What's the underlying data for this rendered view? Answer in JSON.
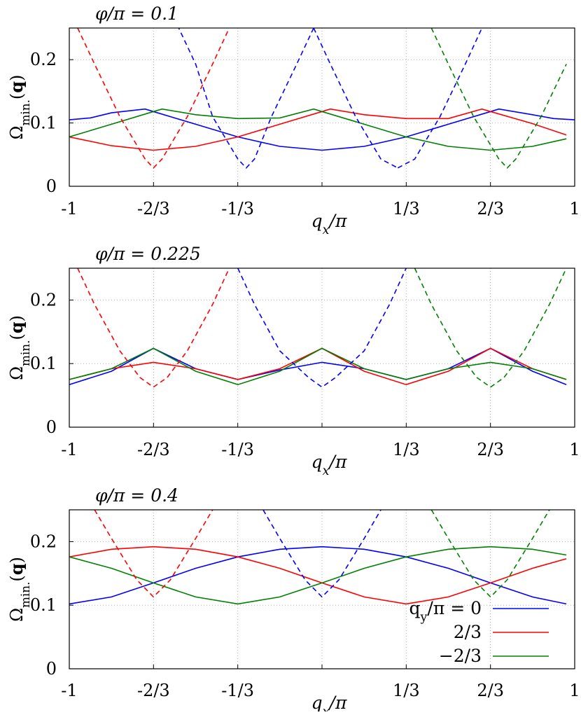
{
  "chart_data": [
    {
      "type": "line",
      "title": "φ/π = 0.1",
      "xlabel": "q_x/π",
      "ylabel": "Ω_min.(q)",
      "xlim": [
        -1,
        1
      ],
      "ylim": [
        0,
        0.25
      ],
      "grid": true,
      "xticks": [
        -1,
        -0.6667,
        -0.3333,
        0,
        0.3333,
        0.6667,
        1
      ],
      "xtick_labels": [
        "-1",
        "-2/3",
        "-1/3",
        "",
        "1/3",
        "2/3",
        "1"
      ],
      "yticks": [
        0,
        0.1,
        0.2
      ],
      "ytick_labels": [
        "0",
        "0.1",
        "0.2"
      ],
      "series": [
        {
          "style": "solid",
          "color": "#0000ff",
          "x": [
            -1,
            -0.917,
            -0.833,
            -0.7,
            -0.667,
            -0.5,
            -0.333,
            -0.167,
            0,
            0.167,
            0.333,
            0.5,
            0.667,
            0.7,
            0.833,
            0.917,
            1
          ],
          "y": [
            0.105,
            0.108,
            0.116,
            0.122,
            0.118,
            0.098,
            0.078,
            0.063,
            0.057,
            0.063,
            0.078,
            0.098,
            0.118,
            0.122,
            0.113,
            0.107,
            0.105
          ]
        },
        {
          "style": "solid",
          "color": "#ff0000",
          "x": [
            -1,
            -0.833,
            -0.667,
            -0.5,
            -0.333,
            -0.167,
            0,
            0.033,
            0.167,
            0.333,
            0.5,
            0.633,
            0.667,
            0.833,
            0.967
          ],
          "y": [
            0.078,
            0.064,
            0.057,
            0.063,
            0.078,
            0.098,
            0.118,
            0.122,
            0.113,
            0.107,
            0.107,
            0.122,
            0.118,
            0.099,
            0.081
          ]
        },
        {
          "style": "solid",
          "color": "#008000",
          "x": [
            -1,
            -0.833,
            -0.667,
            -0.633,
            -0.5,
            -0.333,
            -0.167,
            -0.033,
            0,
            0.167,
            0.333,
            0.5,
            0.667,
            0.833,
            0.967
          ],
          "y": [
            0.078,
            0.098,
            0.118,
            0.122,
            0.113,
            0.107,
            0.108,
            0.122,
            0.118,
            0.098,
            0.078,
            0.063,
            0.057,
            0.063,
            0.075
          ]
        },
        {
          "style": "dashed",
          "color": "#ff0000",
          "x": [
            -0.967,
            -0.9,
            -0.8,
            -0.7,
            -0.667,
            -0.633,
            -0.533,
            -0.433,
            -0.367
          ],
          "y": [
            0.25,
            0.193,
            0.11,
            0.043,
            0.029,
            0.043,
            0.11,
            0.193,
            0.25
          ]
        },
        {
          "style": "dashed",
          "color": "#0000ff",
          "x": [
            -0.033,
            0.033,
            0.133,
            0.233,
            0.3
          ],
          "y": [
            0.25,
            0.193,
            0.11,
            0.043,
            0.029
          ]
        },
        {
          "style": "dashed",
          "color": "#0000ff",
          "x": [
            0.3,
            0.367,
            0.467,
            0.567,
            0.633
          ],
          "y": [
            0.029,
            0.043,
            0.11,
            0.193,
            0.25
          ]
        },
        {
          "style": "dashed",
          "color": "#0000ff",
          "x": [
            -0.033,
            -0.1,
            -0.2,
            -0.267,
            -0.3,
            -0.333,
            -0.433,
            -0.5,
            -0.567
          ],
          "y": [
            0.25,
            0.193,
            0.11,
            0.043,
            0.029,
            0.043,
            0.11,
            0.193,
            0.25
          ]
        },
        {
          "style": "dashed",
          "color": "#008000",
          "x": [
            0.433,
            0.5,
            0.6,
            0.7,
            0.733,
            0.767,
            0.867,
            0.967
          ],
          "y": [
            0.25,
            0.193,
            0.11,
            0.043,
            0.029,
            0.043,
            0.11,
            0.193
          ]
        }
      ]
    },
    {
      "type": "line",
      "title": "φ/π = 0.225",
      "xlabel": "q_x/π",
      "ylabel": "Ω_min.(q)",
      "xlim": [
        -1,
        1
      ],
      "ylim": [
        0,
        0.25
      ],
      "grid": true,
      "xticks": [
        -1,
        -0.6667,
        -0.3333,
        0,
        0.3333,
        0.6667,
        1
      ],
      "xtick_labels": [
        "-1",
        "-2/3",
        "-1/3",
        "",
        "1/3",
        "2/3",
        "1"
      ],
      "yticks": [
        0,
        0.1,
        0.2
      ],
      "ytick_labels": [
        "0",
        "0.1",
        "0.2"
      ],
      "series": [
        {
          "style": "solid",
          "color": "#0000ff",
          "x": [
            -1,
            -0.833,
            -0.667,
            -0.5,
            -0.333,
            -0.167,
            0,
            0.167,
            0.333,
            0.5,
            0.667,
            0.833,
            0.967
          ],
          "y": [
            0.067,
            0.088,
            0.124,
            0.092,
            0.075,
            0.09,
            0.102,
            0.092,
            0.075,
            0.092,
            0.124,
            0.088,
            0.067
          ]
        },
        {
          "style": "solid",
          "color": "#ff0000",
          "x": [
            -1,
            -0.833,
            -0.667,
            -0.5,
            -0.333,
            -0.167,
            0,
            0.167,
            0.333,
            0.5,
            0.667,
            0.833,
            0.967
          ],
          "y": [
            0.075,
            0.092,
            0.102,
            0.092,
            0.075,
            0.092,
            0.124,
            0.088,
            0.067,
            0.088,
            0.124,
            0.092,
            0.075
          ]
        },
        {
          "style": "solid",
          "color": "#008000",
          "x": [
            -1,
            -0.833,
            -0.667,
            -0.5,
            -0.333,
            -0.167,
            0,
            0.167,
            0.333,
            0.5,
            0.667,
            0.833,
            0.967
          ],
          "y": [
            0.075,
            0.092,
            0.124,
            0.088,
            0.067,
            0.088,
            0.124,
            0.092,
            0.075,
            0.092,
            0.102,
            0.092,
            0.075
          ]
        },
        {
          "style": "dashed",
          "color": "#ff0000",
          "x": [
            -0.967,
            -0.9,
            -0.8,
            -0.72,
            -0.667,
            -0.613,
            -0.533,
            -0.433,
            -0.367
          ],
          "y": [
            0.25,
            0.193,
            0.12,
            0.078,
            0.063,
            0.078,
            0.12,
            0.193,
            0.25
          ]
        },
        {
          "style": "dashed",
          "color": "#0000ff",
          "x": [
            -0.333,
            -0.267,
            -0.167,
            -0.053,
            0,
            0.053,
            0.167,
            0.267,
            0.333
          ],
          "y": [
            0.25,
            0.193,
            0.12,
            0.078,
            0.063,
            0.078,
            0.12,
            0.193,
            0.25
          ]
        },
        {
          "style": "dashed",
          "color": "#008000",
          "x": [
            0.367,
            0.433,
            0.533,
            0.613,
            0.667,
            0.72,
            0.8,
            0.9,
            0.967
          ],
          "y": [
            0.25,
            0.193,
            0.12,
            0.078,
            0.063,
            0.078,
            0.12,
            0.193,
            0.25
          ]
        }
      ]
    },
    {
      "type": "line",
      "title": "φ/π = 0.4",
      "xlabel": "q_x/π",
      "ylabel": "Ω_min.(q)",
      "xlim": [
        -1,
        1
      ],
      "ylim": [
        0,
        0.25
      ],
      "grid": true,
      "xticks": [
        -1,
        -0.6667,
        -0.3333,
        0,
        0.3333,
        0.6667,
        1
      ],
      "xtick_labels": [
        "-1",
        "-2/3",
        "-1/3",
        "",
        "1/3",
        "2/3",
        "1"
      ],
      "yticks": [
        0,
        0.1,
        0.2
      ],
      "ytick_labels": [
        "0",
        "0.1",
        "0.2"
      ],
      "legend": {
        "position": "bottom-right",
        "entries": [
          {
            "label": "q_y/π = 0",
            "color": "#0000ff"
          },
          {
            "label": "2/3",
            "color": "#ff0000"
          },
          {
            "label": "−2/3",
            "color": "#008000"
          }
        ]
      },
      "series": [
        {
          "style": "solid",
          "color": "#0000ff",
          "name": "q_y/π = 0",
          "x": [
            -1,
            -0.833,
            -0.667,
            -0.5,
            -0.333,
            -0.167,
            0,
            0.167,
            0.333,
            0.5,
            0.667,
            0.833,
            0.967
          ],
          "y": [
            0.102,
            0.113,
            0.135,
            0.158,
            0.176,
            0.188,
            0.192,
            0.188,
            0.176,
            0.158,
            0.135,
            0.113,
            0.102
          ]
        },
        {
          "style": "solid",
          "color": "#ff0000",
          "name": "2/3",
          "x": [
            -1,
            -0.833,
            -0.667,
            -0.5,
            -0.333,
            -0.167,
            0,
            0.167,
            0.333,
            0.5,
            0.667,
            0.833,
            0.967
          ],
          "y": [
            0.176,
            0.188,
            0.192,
            0.188,
            0.176,
            0.158,
            0.135,
            0.113,
            0.102,
            0.113,
            0.135,
            0.158,
            0.173
          ]
        },
        {
          "style": "solid",
          "color": "#008000",
          "name": "−2/3",
          "x": [
            -1,
            -0.833,
            -0.667,
            -0.5,
            -0.333,
            -0.167,
            0,
            0.167,
            0.333,
            0.5,
            0.667,
            0.833,
            0.967
          ],
          "y": [
            0.176,
            0.158,
            0.135,
            0.113,
            0.102,
            0.113,
            0.135,
            0.158,
            0.176,
            0.188,
            0.192,
            0.188,
            0.179
          ]
        },
        {
          "style": "dashed",
          "color": "#ff0000",
          "x": [
            -0.9,
            -0.833,
            -0.733,
            -0.667,
            -0.6,
            -0.5,
            -0.433
          ],
          "y": [
            0.25,
            0.205,
            0.14,
            0.113,
            0.14,
            0.205,
            0.25
          ]
        },
        {
          "style": "dashed",
          "color": "#0000ff",
          "x": [
            -0.233,
            -0.167,
            -0.067,
            0,
            0.067,
            0.167,
            0.233
          ],
          "y": [
            0.25,
            0.205,
            0.14,
            0.113,
            0.14,
            0.205,
            0.25
          ]
        },
        {
          "style": "dashed",
          "color": "#008000",
          "x": [
            0.433,
            0.5,
            0.6,
            0.667,
            0.733,
            0.833,
            0.9
          ],
          "y": [
            0.25,
            0.205,
            0.14,
            0.113,
            0.14,
            0.205,
            0.25
          ]
        }
      ]
    }
  ]
}
